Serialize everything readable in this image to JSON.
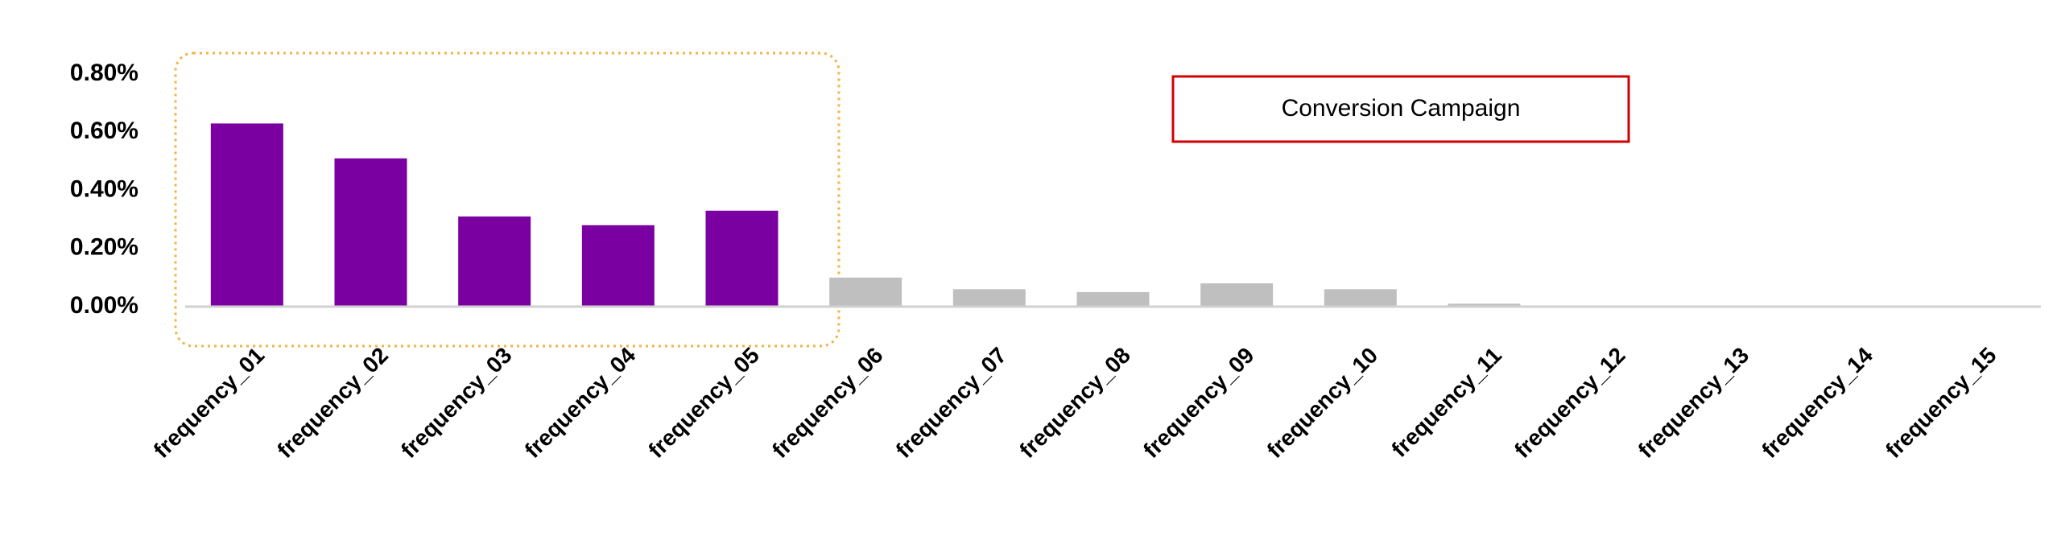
{
  "chart_data": {
    "type": "bar",
    "categories": [
      "frequency_01",
      "frequency_02",
      "frequency_03",
      "frequency_04",
      "frequency_05",
      "frequency_06",
      "frequency_07",
      "frequency_08",
      "frequency_09",
      "frequency_10",
      "frequency_11",
      "frequency_12",
      "frequency_13",
      "frequency_14",
      "frequency_15"
    ],
    "values": [
      0.63,
      0.51,
      0.31,
      0.28,
      0.33,
      0.1,
      0.06,
      0.05,
      0.08,
      0.06,
      0.01,
      0,
      0,
      0,
      0
    ],
    "colors": [
      "#7a00a1",
      "#7a00a1",
      "#7a00a1",
      "#7a00a1",
      "#7a00a1",
      "#bfbfbf",
      "#bfbfbf",
      "#bfbfbf",
      "#bfbfbf",
      "#bfbfbf",
      "#bfbfbf",
      "#bfbfbf",
      "#bfbfbf",
      "#bfbfbf",
      "#bfbfbf"
    ],
    "ylim": [
      0,
      0.8
    ],
    "yticks": [
      {
        "value": 0,
        "label": "0.00%"
      },
      {
        "value": 0.2,
        "label": "0.20%"
      },
      {
        "value": 0.4,
        "label": "0.40%"
      },
      {
        "value": 0.6,
        "label": "0.60%"
      },
      {
        "value": 0.8,
        "label": "0.80%"
      }
    ],
    "grid": false,
    "annotation": "Conversion Campaign"
  }
}
